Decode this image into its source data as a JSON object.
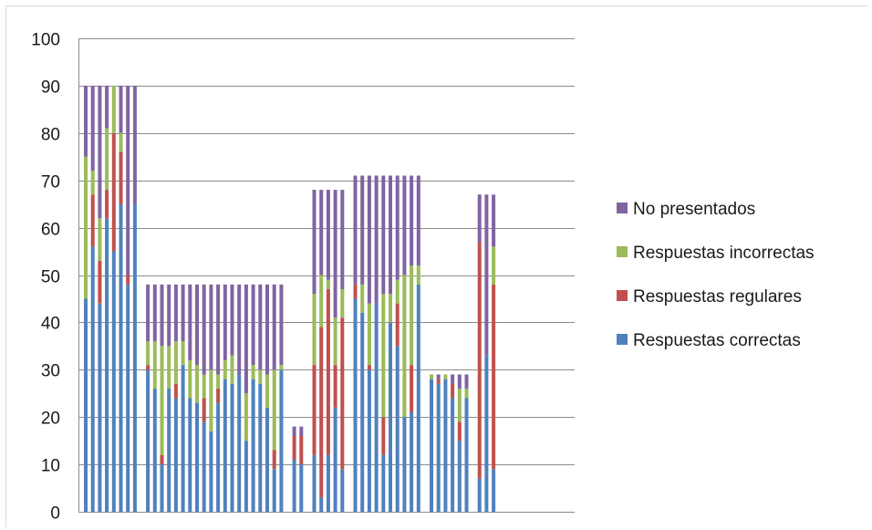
{
  "chart_data": {
    "type": "bar",
    "stacked": true,
    "title": "",
    "xlabel": "",
    "ylabel": "",
    "ylim": [
      0,
      100
    ],
    "yticks": [
      0,
      10,
      20,
      30,
      40,
      50,
      60,
      70,
      80,
      90,
      100
    ],
    "grid": true,
    "legend_position": "right",
    "groups": [
      {
        "bars": [
          [
            45,
            0,
            30,
            15
          ],
          [
            56,
            11,
            5,
            18
          ],
          [
            44,
            9,
            9,
            28
          ],
          [
            62,
            6,
            13,
            9
          ],
          [
            55,
            25,
            10,
            0
          ],
          [
            65,
            11,
            4,
            10
          ],
          [
            48,
            2,
            0,
            40
          ],
          [
            65,
            0,
            0,
            25
          ]
        ]
      },
      {
        "bars": [
          [
            30,
            1,
            5,
            12
          ],
          [
            26,
            0,
            10,
            12
          ],
          [
            10,
            2,
            23,
            13
          ],
          [
            26,
            0,
            9,
            13
          ],
          [
            24,
            3,
            9,
            12
          ],
          [
            31,
            0,
            5,
            12
          ],
          [
            24,
            0,
            8,
            16
          ],
          [
            23,
            0,
            8,
            17
          ],
          [
            19,
            5,
            5,
            19
          ],
          [
            17,
            0,
            13,
            18
          ],
          [
            23,
            3,
            3,
            19
          ],
          [
            28,
            0,
            4,
            16
          ],
          [
            27,
            0,
            6,
            15
          ],
          [
            29,
            0,
            0,
            19
          ],
          [
            15,
            0,
            10,
            23
          ],
          [
            28,
            0,
            3,
            17
          ],
          [
            27,
            0,
            3,
            18
          ],
          [
            22,
            0,
            7,
            19
          ],
          [
            9,
            4,
            17,
            18
          ],
          [
            30,
            0,
            1,
            17
          ]
        ]
      },
      {
        "bars": [
          [
            11,
            5,
            0,
            2
          ],
          [
            10,
            6,
            0,
            2
          ]
        ]
      },
      {
        "bars": [
          [
            12,
            19,
            15,
            22
          ],
          [
            3,
            36,
            11,
            18
          ],
          [
            12,
            35,
            2,
            19
          ],
          [
            22,
            9,
            10,
            27
          ],
          [
            9,
            32,
            6,
            21
          ]
        ]
      },
      {
        "bars": [
          [
            45,
            3,
            0,
            23
          ],
          [
            42,
            0,
            6,
            23
          ],
          [
            30,
            1,
            13,
            27
          ],
          [
            44,
            0,
            0,
            27
          ],
          [
            12,
            8,
            26,
            25
          ],
          [
            40,
            0,
            6,
            25
          ],
          [
            35,
            9,
            5,
            22
          ],
          [
            20,
            0,
            30,
            21
          ],
          [
            21,
            10,
            21,
            19
          ],
          [
            48,
            0,
            4,
            19
          ]
        ]
      },
      {
        "bars": [
          [
            28,
            0,
            1,
            0
          ],
          [
            27,
            1,
            0,
            1
          ],
          [
            28,
            0,
            1,
            0
          ],
          [
            24,
            3,
            0,
            2
          ],
          [
            15,
            4,
            7,
            3
          ],
          [
            24,
            0,
            2,
            3
          ]
        ]
      },
      {
        "bars": [
          [
            7,
            50,
            0,
            10
          ],
          [
            33,
            0,
            0,
            34
          ],
          [
            9,
            39,
            8,
            11
          ]
        ]
      }
    ],
    "bar_component_order": [
      "Respuestas correctas",
      "Respuestas regulares",
      "Respuestas incorrectas",
      "No presentados"
    ],
    "series": [
      {
        "name": "No presentados",
        "color": "#8064a2"
      },
      {
        "name": "Respuestas incorrectas",
        "color": "#9bbb59"
      },
      {
        "name": "Respuestas regulares",
        "color": "#c0504d"
      },
      {
        "name": "Respuestas correctas",
        "color": "#4f81bd"
      }
    ]
  }
}
